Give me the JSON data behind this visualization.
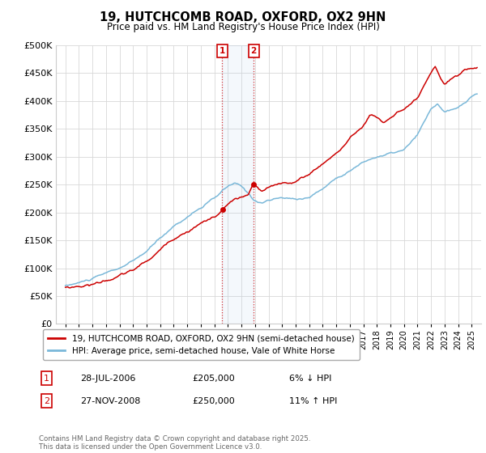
{
  "title": "19, HUTCHCOMB ROAD, OXFORD, OX2 9HN",
  "subtitle": "Price paid vs. HM Land Registry's House Price Index (HPI)",
  "legend_line1": "19, HUTCHCOMB ROAD, OXFORD, OX2 9HN (semi-detached house)",
  "legend_line2": "HPI: Average price, semi-detached house, Vale of White Horse",
  "footer": "Contains HM Land Registry data © Crown copyright and database right 2025.\nThis data is licensed under the Open Government Licence v3.0.",
  "annotation1_label": "1",
  "annotation1_date": "28-JUL-2006",
  "annotation1_price": "£205,000",
  "annotation1_hpi": "6% ↓ HPI",
  "annotation2_label": "2",
  "annotation2_date": "27-NOV-2008",
  "annotation2_price": "£250,000",
  "annotation2_hpi": "11% ↑ HPI",
  "ylim": [
    0,
    500000
  ],
  "yticks": [
    0,
    50000,
    100000,
    150000,
    200000,
    250000,
    300000,
    350000,
    400000,
    450000,
    500000
  ],
  "sale1_year": 2006.57,
  "sale1_price": 205000,
  "sale2_year": 2008.9,
  "sale2_price": 250000,
  "hpi_color": "#7ab8d9",
  "price_color": "#cc0000",
  "annotation_box_color": "#cc0000",
  "grid_color": "#d8d8d8",
  "background_color": "#ffffff"
}
